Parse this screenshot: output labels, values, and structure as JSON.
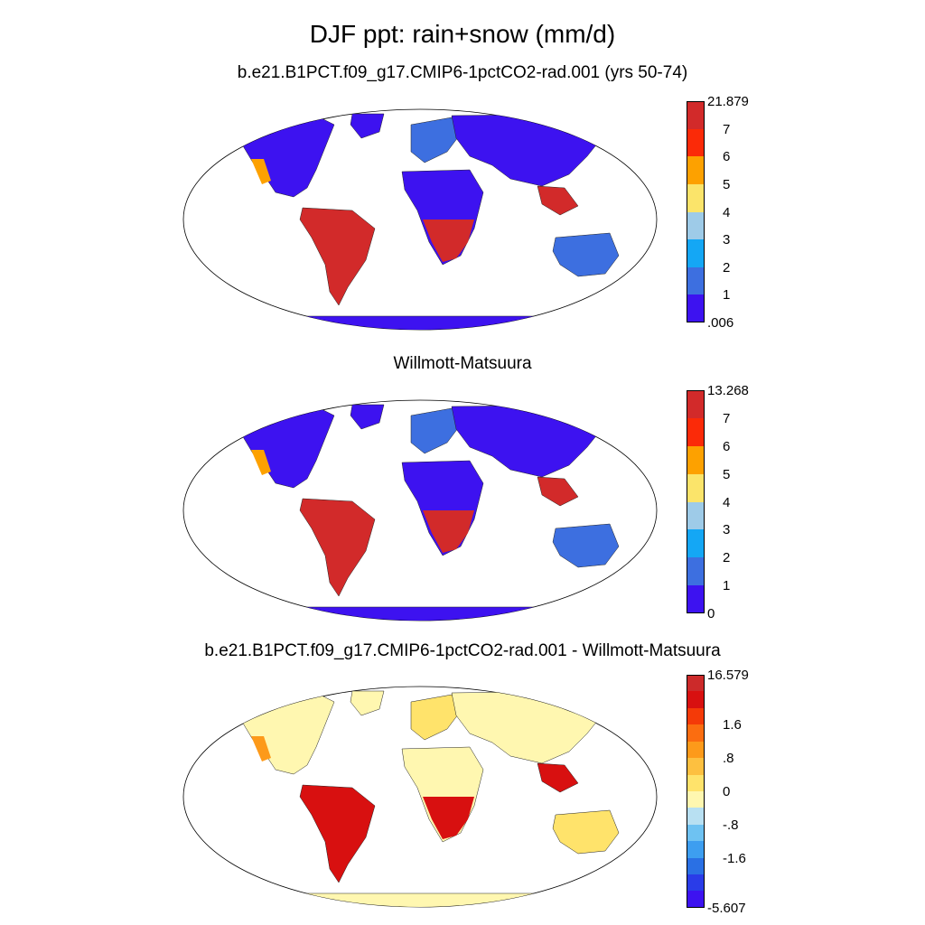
{
  "main_title": "DJF ppt: rain+snow (mm/d)",
  "panels": [
    {
      "title": "b.e21.B1PCT.f09_g17.CMIP6-1pctCO2-rad.001 (yrs 50-74)",
      "colors": [
        "#3d12f0",
        "#3d6fe0",
        "#14a7f5",
        "#9ecbe8",
        "#fbe46a",
        "#fda100",
        "#fb2a08",
        "#d22a2a"
      ],
      "labels": [
        "21.879",
        "7",
        "6",
        "5",
        "4",
        "3",
        "2",
        "1",
        ".006"
      ],
      "map_colors": {
        "land_dry": "#3d12f0",
        "land_mid": "#3d6fe0",
        "land_wet": "#d22a2a",
        "land_warm": "#fda100"
      }
    },
    {
      "title": "Willmott-Matsuura",
      "colors": [
        "#3d12f0",
        "#3d6fe0",
        "#14a7f5",
        "#9ecbe8",
        "#fbe46a",
        "#fda100",
        "#fb2a08",
        "#d22a2a"
      ],
      "labels": [
        "13.268",
        "7",
        "6",
        "5",
        "4",
        "3",
        "2",
        "1",
        "0"
      ],
      "map_colors": {
        "land_dry": "#3d12f0",
        "land_mid": "#3d6fe0",
        "land_wet": "#d22a2a",
        "land_warm": "#fda100"
      }
    },
    {
      "title": "b.e21.B1PCT.f09_g17.CMIP6-1pctCO2-rad.001 - Willmott-Matsuura",
      "colors": [
        "#3d12f0",
        "#2a3ce8",
        "#2a70e4",
        "#3d9ef0",
        "#6ec2f2",
        "#b8e0f2",
        "#fff7b0",
        "#ffe36b",
        "#fdc040",
        "#fd9a1a",
        "#fb6d10",
        "#f43a08",
        "#d81010",
        "#cc2a2a"
      ],
      "labels": [
        "16.579",
        "1.6",
        ".8",
        "0",
        "-.8",
        "-1.6",
        "-5.607"
      ],
      "label_positions": [
        0,
        0.215,
        0.357,
        0.5,
        0.643,
        0.785,
        1
      ],
      "map_colors": {
        "land_dry": "#fff7b0",
        "land_mid": "#ffe36b",
        "land_wet": "#d81010",
        "land_warm": "#fd9a1a"
      }
    }
  ]
}
